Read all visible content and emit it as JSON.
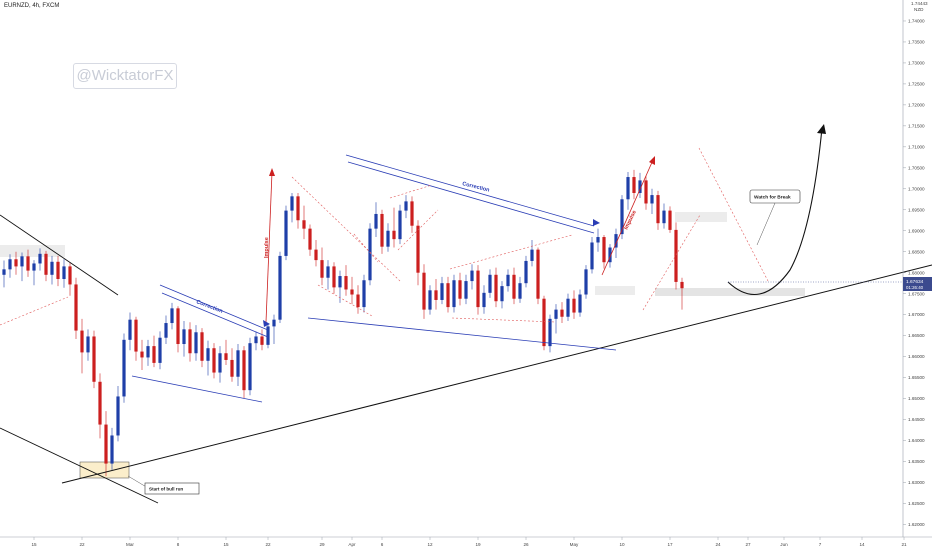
{
  "header": {
    "title": "EURNZD, 4h, FXCM"
  },
  "watermark": {
    "text": "@WicktatorFX"
  },
  "price_scale": {
    "unit_label": "NZD",
    "top_value": "1.74443"
  },
  "colors": {
    "bull": "#1f3fa8",
    "bear": "#cc1f1f",
    "trend": "#111111",
    "channel": "#2a3db5",
    "dash": "#e05a5a"
  },
  "chart_data": {
    "type": "candlestick",
    "title": "EURNZD, 4h, FXCM",
    "ylim": [
      1.617,
      1.745
    ],
    "y_ticks": [
      "1.74000",
      "1.73500",
      "1.73000",
      "1.72500",
      "1.72000",
      "1.71500",
      "1.71000",
      "1.70500",
      "1.70000",
      "1.69500",
      "1.69000",
      "1.68500",
      "1.68000",
      "1.67500",
      "1.67000",
      "1.66500",
      "1.66000",
      "1.65500",
      "1.65000",
      "1.64500",
      "1.64000",
      "1.63500",
      "1.63000",
      "1.62500",
      "1.62000"
    ],
    "x_ticks": [
      {
        "label": "15",
        "i": 5
      },
      {
        "label": "22",
        "i": 13
      },
      {
        "label": "Mar",
        "i": 21
      },
      {
        "label": "8",
        "i": 29
      },
      {
        "label": "15",
        "i": 37
      },
      {
        "label": "22",
        "i": 44
      },
      {
        "label": "29",
        "i": 53
      },
      {
        "label": "Apr",
        "i": 58
      },
      {
        "label": "6",
        "i": 63
      },
      {
        "label": "12",
        "i": 71
      },
      {
        "label": "19",
        "i": 79
      },
      {
        "label": "26",
        "i": 87
      },
      {
        "label": "May",
        "i": 95
      },
      {
        "label": "10",
        "i": 103
      },
      {
        "label": "17",
        "i": 111
      },
      {
        "label": "24",
        "i": 119
      },
      {
        "label": "27",
        "i": 124
      },
      {
        "label": "Jun",
        "i": 130
      },
      {
        "label": "7",
        "i": 136
      },
      {
        "label": "14",
        "i": 143
      },
      {
        "label": "21",
        "i": 150
      }
    ],
    "current_price": {
      "value": 1.67634,
      "label": "1.67634",
      "countdown": "01:26:40"
    },
    "candles": [
      [
        1.6795,
        1.6829,
        1.6765,
        1.6808
      ],
      [
        1.6808,
        1.6844,
        1.6788,
        1.6832
      ],
      [
        1.6832,
        1.685,
        1.6795,
        1.6815
      ],
      [
        1.6815,
        1.6848,
        1.678,
        1.6839
      ],
      [
        1.6839,
        1.6855,
        1.679,
        1.6805
      ],
      [
        1.6805,
        1.683,
        1.677,
        1.6822
      ],
      [
        1.6822,
        1.6858,
        1.6805,
        1.6845
      ],
      [
        1.6845,
        1.6852,
        1.678,
        1.6795
      ],
      [
        1.6795,
        1.684,
        1.6772,
        1.6826
      ],
      [
        1.6826,
        1.684,
        1.6768,
        1.6785
      ],
      [
        1.6785,
        1.6832,
        1.6764,
        1.6815
      ],
      [
        1.6815,
        1.6824,
        1.6745,
        1.6772
      ],
      [
        1.6772,
        1.6788,
        1.6642,
        1.6662
      ],
      [
        1.6662,
        1.669,
        1.656,
        1.661
      ],
      [
        1.661,
        1.6665,
        1.659,
        1.6648
      ],
      [
        1.6648,
        1.6662,
        1.6525,
        1.654
      ],
      [
        1.654,
        1.656,
        1.6405,
        1.6438
      ],
      [
        1.6438,
        1.647,
        1.6315,
        1.6345
      ],
      [
        1.6345,
        1.643,
        1.633,
        1.6412
      ],
      [
        1.6412,
        1.653,
        1.6398,
        1.6505
      ],
      [
        1.6505,
        1.6655,
        1.649,
        1.664
      ],
      [
        1.664,
        1.6705,
        1.6615,
        1.6688
      ],
      [
        1.6688,
        1.6695,
        1.659,
        1.6612
      ],
      [
        1.6612,
        1.664,
        1.6568,
        1.6598
      ],
      [
        1.6598,
        1.664,
        1.6578,
        1.6625
      ],
      [
        1.6625,
        1.665,
        1.6575,
        1.6585
      ],
      [
        1.6585,
        1.666,
        1.657,
        1.6645
      ],
      [
        1.6645,
        1.6698,
        1.663,
        1.668
      ],
      [
        1.668,
        1.6728,
        1.6665,
        1.6715
      ],
      [
        1.6715,
        1.672,
        1.661,
        1.663
      ],
      [
        1.663,
        1.6685,
        1.66,
        1.6665
      ],
      [
        1.6665,
        1.6682,
        1.6588,
        1.6608
      ],
      [
        1.6608,
        1.6675,
        1.659,
        1.6658
      ],
      [
        1.6658,
        1.6668,
        1.6575,
        1.659
      ],
      [
        1.659,
        1.6638,
        1.6555,
        1.662
      ],
      [
        1.662,
        1.6632,
        1.6548,
        1.6562
      ],
      [
        1.6562,
        1.6625,
        1.6538,
        1.6608
      ],
      [
        1.6608,
        1.664,
        1.658,
        1.6592
      ],
      [
        1.6592,
        1.662,
        1.654,
        1.6552
      ],
      [
        1.6552,
        1.663,
        1.653,
        1.6615
      ],
      [
        1.6615,
        1.6625,
        1.65,
        1.652
      ],
      [
        1.652,
        1.6645,
        1.6508,
        1.6632
      ],
      [
        1.6632,
        1.666,
        1.6615,
        1.6648
      ],
      [
        1.6648,
        1.6665,
        1.6615,
        1.6628
      ],
      [
        1.6628,
        1.668,
        1.662,
        1.6672
      ],
      [
        1.6672,
        1.67,
        1.663,
        1.6688
      ],
      [
        1.6688,
        1.685,
        1.668,
        1.684
      ],
      [
        1.684,
        1.696,
        1.683,
        1.6948
      ],
      [
        1.6948,
        1.699,
        1.692,
        1.6982
      ],
      [
        1.6982,
        1.699,
        1.6905,
        1.6925
      ],
      [
        1.6925,
        1.696,
        1.688,
        1.6905
      ],
      [
        1.6905,
        1.6915,
        1.684,
        1.6855
      ],
      [
        1.6855,
        1.6878,
        1.6815,
        1.683
      ],
      [
        1.683,
        1.686,
        1.677,
        1.6788
      ],
      [
        1.6788,
        1.683,
        1.676,
        1.6815
      ],
      [
        1.6815,
        1.6825,
        1.675,
        1.6765
      ],
      [
        1.6765,
        1.6805,
        1.6728,
        1.6792
      ],
      [
        1.6792,
        1.6818,
        1.6745,
        1.676
      ],
      [
        1.676,
        1.679,
        1.6725,
        1.6748
      ],
      [
        1.6748,
        1.677,
        1.6702,
        1.6718
      ],
      [
        1.6718,
        1.6795,
        1.6705,
        1.6782
      ],
      [
        1.6782,
        1.6918,
        1.677,
        1.6905
      ],
      [
        1.6905,
        1.6968,
        1.6885,
        1.694
      ],
      [
        1.694,
        1.695,
        1.6845,
        1.6862
      ],
      [
        1.6862,
        1.6918,
        1.685,
        1.69
      ],
      [
        1.69,
        1.6955,
        1.686,
        1.688
      ],
      [
        1.688,
        1.6962,
        1.6868,
        1.6948
      ],
      [
        1.6948,
        1.6985,
        1.693,
        1.697
      ],
      [
        1.697,
        1.6982,
        1.6895,
        1.6912
      ],
      [
        1.6912,
        1.6925,
        1.677,
        1.68
      ],
      [
        1.68,
        1.682,
        1.669,
        1.6712
      ],
      [
        1.6712,
        1.677,
        1.67,
        1.6758
      ],
      [
        1.6758,
        1.6785,
        1.6712,
        1.6735
      ],
      [
        1.6735,
        1.679,
        1.6725,
        1.6775
      ],
      [
        1.6775,
        1.679,
        1.6705,
        1.6718
      ],
      [
        1.6718,
        1.6795,
        1.6705,
        1.6782
      ],
      [
        1.6782,
        1.68,
        1.6722,
        1.6738
      ],
      [
        1.6738,
        1.6795,
        1.6725,
        1.678
      ],
      [
        1.678,
        1.682,
        1.676,
        1.6805
      ],
      [
        1.6805,
        1.6818,
        1.67,
        1.6718
      ],
      [
        1.6718,
        1.677,
        1.6702,
        1.6752
      ],
      [
        1.6752,
        1.6808,
        1.674,
        1.6795
      ],
      [
        1.6795,
        1.6812,
        1.6718,
        1.6732
      ],
      [
        1.6732,
        1.678,
        1.6715,
        1.6768
      ],
      [
        1.6768,
        1.6808,
        1.6755,
        1.6795
      ],
      [
        1.6795,
        1.6812,
        1.6725,
        1.6738
      ],
      [
        1.6738,
        1.679,
        1.6728,
        1.6775
      ],
      [
        1.6775,
        1.684,
        1.6765,
        1.6828
      ],
      [
        1.6828,
        1.6878,
        1.6815,
        1.6855
      ],
      [
        1.6855,
        1.686,
        1.6725,
        1.6738
      ],
      [
        1.6738,
        1.6745,
        1.6615,
        1.6625
      ],
      [
        1.6625,
        1.67,
        1.661,
        1.669
      ],
      [
        1.669,
        1.6725,
        1.6655,
        1.6712
      ],
      [
        1.6712,
        1.673,
        1.668,
        1.6695
      ],
      [
        1.6695,
        1.675,
        1.6685,
        1.6738
      ],
      [
        1.6738,
        1.6758,
        1.669,
        1.6705
      ],
      [
        1.6705,
        1.676,
        1.6695,
        1.6748
      ],
      [
        1.6748,
        1.6818,
        1.6738,
        1.6808
      ],
      [
        1.6808,
        1.6885,
        1.6798,
        1.6872
      ],
      [
        1.6872,
        1.6905,
        1.685,
        1.6885
      ],
      [
        1.6885,
        1.689,
        1.681,
        1.6825
      ],
      [
        1.6825,
        1.6868,
        1.6812,
        1.686
      ],
      [
        1.686,
        1.6905,
        1.6835,
        1.6892
      ],
      [
        1.6892,
        1.6985,
        1.688,
        1.6975
      ],
      [
        1.6975,
        1.704,
        1.695,
        1.7028
      ],
      [
        1.7028,
        1.7045,
        1.6975,
        1.699
      ],
      [
        1.699,
        1.7038,
        1.6978,
        1.702
      ],
      [
        1.702,
        1.703,
        1.695,
        1.6965
      ],
      [
        1.6965,
        1.7,
        1.694,
        1.6985
      ],
      [
        1.6985,
        1.6995,
        1.6902,
        1.6918
      ],
      [
        1.6918,
        1.6965,
        1.6905,
        1.6948
      ],
      [
        1.6948,
        1.6958,
        1.6895,
        1.6902
      ],
      [
        1.6902,
        1.692,
        1.676,
        1.6778
      ],
      [
        1.6778,
        1.6788,
        1.6712,
        1.6763
      ]
    ]
  },
  "annotations": {
    "impulse_1": "Impulse",
    "impulse_2": "Impulse",
    "correction_1": "Correction",
    "correction_2": "Correction",
    "start_bull_run": "Start of bull run",
    "watch_for_break": "Watch for Break"
  }
}
